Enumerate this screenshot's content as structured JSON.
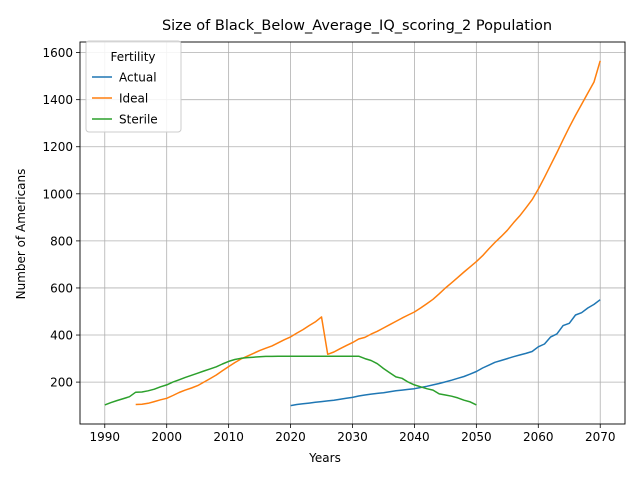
{
  "chart_data": {
    "type": "line",
    "title": "Size of Black_Below_Average_IQ_scoring_2 Population",
    "xlabel": "Years",
    "ylabel": "Number of Americans",
    "xlim": [
      1986.0,
      2074.0
    ],
    "ylim": [
      22,
      1645
    ],
    "xticks": [
      1990,
      2000,
      2010,
      2020,
      2030,
      2040,
      2050,
      2060,
      2070
    ],
    "yticks": [
      200,
      400,
      600,
      800,
      1000,
      1200,
      1400,
      1600
    ],
    "grid": true,
    "legend": {
      "title": "Fertility",
      "placement": "top-left"
    },
    "series": [
      {
        "name": "Actual",
        "color": "#1f77b4",
        "x": [
          2020,
          2021,
          2022,
          2023,
          2024,
          2025,
          2026,
          2027,
          2028,
          2029,
          2030,
          2031,
          2032,
          2033,
          2034,
          2035,
          2036,
          2037,
          2038,
          2039,
          2040,
          2041,
          2042,
          2043,
          2044,
          2045,
          2046,
          2047,
          2048,
          2049,
          2050,
          2051,
          2052,
          2053,
          2054,
          2055,
          2056,
          2057,
          2058,
          2059,
          2060,
          2061,
          2062,
          2063,
          2064,
          2065,
          2066,
          2067,
          2068,
          2069,
          2070
        ],
        "y": [
          100,
          105,
          108,
          111,
          114,
          117,
          120,
          123,
          127,
          131,
          135,
          141,
          145,
          149,
          152,
          155,
          159,
          163,
          166,
          169,
          172,
          177,
          182,
          188,
          194,
          201,
          208,
          216,
          224,
          234,
          245,
          260,
          272,
          284,
          292,
          300,
          308,
          315,
          322,
          330,
          350,
          362,
          392,
          405,
          440,
          450,
          485,
          495,
          515,
          530,
          550
        ]
      },
      {
        "name": "Ideal",
        "color": "#ff7f0e",
        "x": [
          1995,
          1996,
          1997,
          1998,
          1999,
          2000,
          2001,
          2002,
          2003,
          2004,
          2005,
          2006,
          2007,
          2008,
          2009,
          2010,
          2011,
          2012,
          2013,
          2014,
          2015,
          2016,
          2017,
          2018,
          2019,
          2020,
          2021,
          2022,
          2023,
          2024,
          2025,
          2026,
          2027,
          2028,
          2029,
          2030,
          2031,
          2032,
          2033,
          2034,
          2035,
          2036,
          2037,
          2038,
          2039,
          2040,
          2041,
          2042,
          2043,
          2044,
          2045,
          2046,
          2047,
          2048,
          2049,
          2050,
          2051,
          2052,
          2053,
          2054,
          2055,
          2056,
          2057,
          2058,
          2059,
          2060,
          2061,
          2062,
          2063,
          2064,
          2065,
          2066,
          2067,
          2068,
          2069,
          2070
        ],
        "y": [
          105,
          106,
          110,
          117,
          125,
          131,
          143,
          156,
          166,
          175,
          185,
          200,
          215,
          230,
          248,
          266,
          283,
          298,
          310,
          322,
          334,
          344,
          354,
          367,
          380,
          392,
          408,
          423,
          440,
          456,
          477,
          318,
          328,
          342,
          355,
          368,
          383,
          390,
          404,
          416,
          430,
          444,
          458,
          472,
          485,
          498,
          515,
          533,
          552,
          575,
          600,
          622,
          645,
          668,
          690,
          712,
          737,
          766,
          793,
          818,
          845,
          877,
          906,
          940,
          975,
          1020,
          1070,
          1123,
          1175,
          1230,
          1283,
          1333,
          1380,
          1428,
          1475,
          1565
        ]
      },
      {
        "name": "Sterile",
        "color": "#2ca02c",
        "x": [
          1990,
          1991,
          1992,
          1993,
          1994,
          1995,
          1996,
          1997,
          1998,
          1999,
          2000,
          2001,
          2002,
          2003,
          2004,
          2005,
          2006,
          2007,
          2008,
          2009,
          2010,
          2011,
          2012,
          2013,
          2014,
          2015,
          2016,
          2017,
          2018,
          2019,
          2020,
          2021,
          2022,
          2023,
          2024,
          2025,
          2026,
          2027,
          2028,
          2029,
          2030,
          2031,
          2032,
          2033,
          2034,
          2035,
          2036,
          2037,
          2038,
          2039,
          2040,
          2041,
          2042,
          2043,
          2044,
          2045,
          2046,
          2047,
          2048,
          2049,
          2050
        ],
        "y": [
          103,
          113,
          122,
          130,
          138,
          157,
          158,
          163,
          170,
          180,
          188,
          200,
          210,
          220,
          229,
          238,
          247,
          256,
          265,
          277,
          288,
          296,
          301,
          304,
          306,
          308,
          309,
          309,
          310,
          310,
          310,
          310,
          310,
          310,
          310,
          310,
          310,
          310,
          310,
          310,
          310,
          310,
          300,
          292,
          278,
          258,
          240,
          222,
          216,
          200,
          188,
          180,
          172,
          166,
          150,
          145,
          140,
          133,
          123,
          116,
          103
        ]
      }
    ]
  }
}
